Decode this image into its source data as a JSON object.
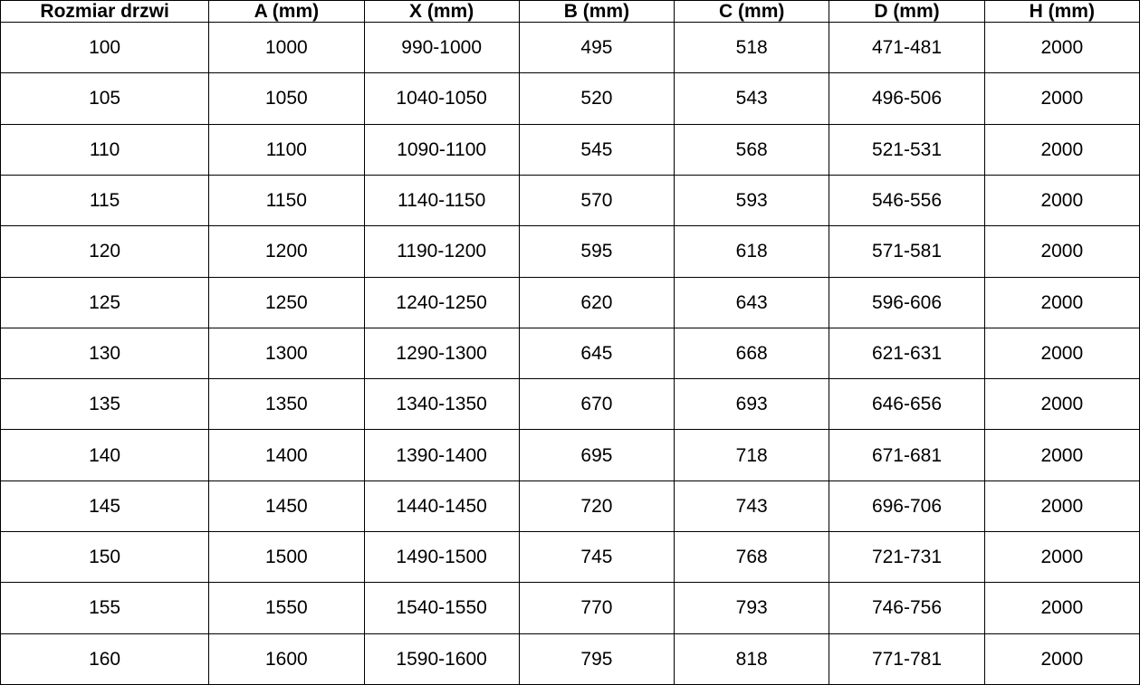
{
  "table": {
    "name": "door-dimensions-table",
    "columns": [
      "Rozmiar drzwi",
      "A (mm)",
      "X (mm)",
      "B (mm)",
      "C (mm)",
      "D (mm)",
      "H (mm)"
    ],
    "rows": [
      [
        "100",
        "1000",
        "990-1000",
        "495",
        "518",
        "471-481",
        "2000"
      ],
      [
        "105",
        "1050",
        "1040-1050",
        "520",
        "543",
        "496-506",
        "2000"
      ],
      [
        "110",
        "1100",
        "1090-1100",
        "545",
        "568",
        "521-531",
        "2000"
      ],
      [
        "115",
        "1150",
        "1140-1150",
        "570",
        "593",
        "546-556",
        "2000"
      ],
      [
        "120",
        "1200",
        "1190-1200",
        "595",
        "618",
        "571-581",
        "2000"
      ],
      [
        "125",
        "1250",
        "1240-1250",
        "620",
        "643",
        "596-606",
        "2000"
      ],
      [
        "130",
        "1300",
        "1290-1300",
        "645",
        "668",
        "621-631",
        "2000"
      ],
      [
        "135",
        "1350",
        "1340-1350",
        "670",
        "693",
        "646-656",
        "2000"
      ],
      [
        "140",
        "1400",
        "1390-1400",
        "695",
        "718",
        "671-681",
        "2000"
      ],
      [
        "145",
        "1450",
        "1440-1450",
        "720",
        "743",
        "696-706",
        "2000"
      ],
      [
        "150",
        "1500",
        "1490-1500",
        "745",
        "768",
        "721-731",
        "2000"
      ],
      [
        "155",
        "1550",
        "1540-1550",
        "770",
        "793",
        "746-756",
        "2000"
      ],
      [
        "160",
        "1600",
        "1590-1600",
        "795",
        "818",
        "771-781",
        "2000"
      ]
    ]
  },
  "colors": {
    "border": "#000000",
    "background": "#ffffff",
    "text": "#000000"
  }
}
